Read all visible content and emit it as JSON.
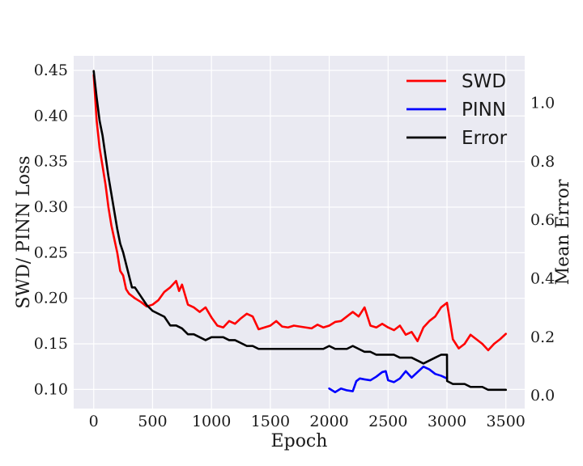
{
  "chart_data": {
    "type": "line",
    "xlabel": "Epoch",
    "ylabel_left": "SWD/ PINN Loss",
    "ylabel_right": "Mean Error",
    "xlim": [
      -170,
      3660
    ],
    "ylim_left": [
      0.079,
      0.466
    ],
    "ylim_right": [
      -0.044,
      1.162
    ],
    "x_ticks": [
      0,
      500,
      1000,
      1500,
      2000,
      2500,
      3000,
      3500
    ],
    "y_ticks_left": [
      0.1,
      0.15,
      0.2,
      0.25,
      0.3,
      0.35,
      0.4,
      0.45
    ],
    "y_tick_labels_left": [
      "0.10",
      "0.15",
      "0.20",
      "0.25",
      "0.30",
      "0.35",
      "0.40",
      "0.45"
    ],
    "y_ticks_right": [
      0.0,
      0.2,
      0.4,
      0.6,
      0.8,
      1.0
    ],
    "y_tick_labels_right": [
      "0.0",
      "0.2",
      "0.4",
      "0.6",
      "0.8",
      "1.0"
    ],
    "grid": true,
    "legend_position": "top-right",
    "background": "#eaeaf2",
    "series": [
      {
        "name": "SWD",
        "axis": "left",
        "color": "#ff0000",
        "x": [
          0,
          25,
          50,
          75,
          100,
          125,
          150,
          175,
          200,
          225,
          250,
          275,
          300,
          350,
          400,
          450,
          500,
          550,
          600,
          650,
          700,
          725,
          750,
          800,
          850,
          900,
          950,
          1000,
          1050,
          1100,
          1150,
          1200,
          1250,
          1300,
          1350,
          1400,
          1450,
          1500,
          1550,
          1600,
          1650,
          1700,
          1750,
          1800,
          1850,
          1900,
          1950,
          2000,
          2050,
          2100,
          2150,
          2200,
          2250,
          2300,
          2350,
          2400,
          2450,
          2500,
          2550,
          2600,
          2650,
          2700,
          2750,
          2800,
          2850,
          2900,
          2950,
          3000,
          3050,
          3100,
          3150,
          3200,
          3250,
          3300,
          3350,
          3400,
          3450,
          3500
        ],
        "y": [
          0.445,
          0.395,
          0.365,
          0.345,
          0.325,
          0.3,
          0.28,
          0.265,
          0.25,
          0.23,
          0.225,
          0.21,
          0.205,
          0.2,
          0.196,
          0.191,
          0.193,
          0.198,
          0.207,
          0.212,
          0.219,
          0.208,
          0.215,
          0.193,
          0.19,
          0.185,
          0.19,
          0.179,
          0.17,
          0.168,
          0.175,
          0.172,
          0.178,
          0.183,
          0.18,
          0.166,
          0.168,
          0.17,
          0.175,
          0.169,
          0.168,
          0.17,
          0.169,
          0.168,
          0.167,
          0.171,
          0.168,
          0.17,
          0.174,
          0.175,
          0.18,
          0.185,
          0.18,
          0.19,
          0.17,
          0.168,
          0.172,
          0.168,
          0.165,
          0.17,
          0.16,
          0.163,
          0.153,
          0.168,
          0.175,
          0.18,
          0.19,
          0.195,
          0.155,
          0.145,
          0.15,
          0.16,
          0.155,
          0.15,
          0.143,
          0.15,
          0.155,
          0.161
        ]
      },
      {
        "name": "PINN",
        "axis": "left",
        "color": "#0000ff",
        "x": [
          2000,
          2050,
          2100,
          2150,
          2200,
          2230,
          2260,
          2300,
          2350,
          2400,
          2450,
          2480,
          2500,
          2550,
          2600,
          2650,
          2700,
          2750,
          2800,
          2850,
          2900,
          2950,
          3000
        ],
        "y": [
          0.101,
          0.097,
          0.101,
          0.099,
          0.098,
          0.109,
          0.112,
          0.111,
          0.11,
          0.114,
          0.119,
          0.12,
          0.11,
          0.108,
          0.112,
          0.12,
          0.113,
          0.119,
          0.125,
          0.122,
          0.117,
          0.115,
          0.112
        ]
      },
      {
        "name": "Error",
        "axis": "right",
        "color": "#000000",
        "x": [
          0,
          25,
          50,
          75,
          100,
          125,
          150,
          175,
          200,
          225,
          250,
          275,
          300,
          325,
          350,
          400,
          450,
          500,
          550,
          600,
          650,
          700,
          750,
          800,
          850,
          900,
          950,
          1000,
          1050,
          1100,
          1150,
          1200,
          1250,
          1300,
          1350,
          1400,
          1450,
          1500,
          1550,
          1600,
          1650,
          1700,
          1750,
          1800,
          1850,
          1900,
          1950,
          2000,
          2050,
          2100,
          2150,
          2200,
          2250,
          2300,
          2350,
          2400,
          2450,
          2500,
          2550,
          2600,
          2650,
          2700,
          2750,
          2800,
          2850,
          2900,
          2950,
          3000,
          3001,
          3050,
          3100,
          3150,
          3200,
          3250,
          3300,
          3350,
          3400,
          3450,
          3500
        ],
        "y": [
          1.11,
          1.02,
          0.94,
          0.89,
          0.82,
          0.75,
          0.69,
          0.63,
          0.57,
          0.52,
          0.49,
          0.45,
          0.41,
          0.37,
          0.37,
          0.34,
          0.31,
          0.29,
          0.28,
          0.27,
          0.24,
          0.24,
          0.23,
          0.21,
          0.21,
          0.2,
          0.19,
          0.2,
          0.2,
          0.2,
          0.19,
          0.19,
          0.18,
          0.17,
          0.17,
          0.16,
          0.16,
          0.16,
          0.16,
          0.16,
          0.16,
          0.16,
          0.16,
          0.16,
          0.16,
          0.16,
          0.16,
          0.17,
          0.16,
          0.16,
          0.16,
          0.17,
          0.16,
          0.15,
          0.15,
          0.14,
          0.14,
          0.14,
          0.14,
          0.13,
          0.13,
          0.13,
          0.12,
          0.11,
          0.12,
          0.13,
          0.14,
          0.14,
          0.05,
          0.04,
          0.04,
          0.04,
          0.03,
          0.03,
          0.03,
          0.02,
          0.02,
          0.02,
          0.02
        ]
      }
    ]
  }
}
